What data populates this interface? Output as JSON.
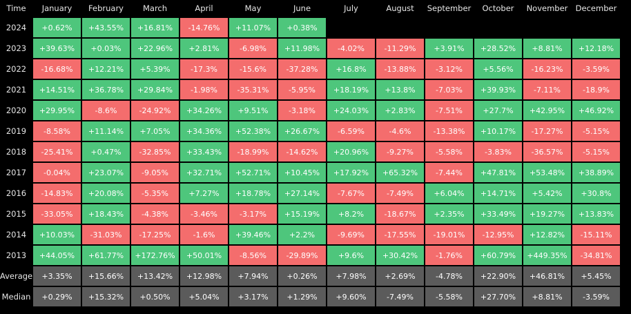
{
  "table": {
    "header": [
      "Time",
      "January",
      "February",
      "March",
      "April",
      "May",
      "June",
      "July",
      "August",
      "September",
      "October",
      "November",
      "December"
    ],
    "rows": [
      {
        "label": "2024",
        "cells": [
          "+0.62%",
          "+43.55%",
          "+16.81%",
          "-14.76%",
          "+11.07%",
          "+0.38%"
        ]
      },
      {
        "label": "2023",
        "cells": [
          "+39.63%",
          "+0.03%",
          "+22.96%",
          "+2.81%",
          "-6.98%",
          "+11.98%",
          "-4.02%",
          "-11.29%",
          "+3.91%",
          "+28.52%",
          "+8.81%",
          "+12.18%"
        ]
      },
      {
        "label": "2022",
        "cells": [
          "-16.68%",
          "+12.21%",
          "+5.39%",
          "-17.3%",
          "-15.6%",
          "-37.28%",
          "+16.8%",
          "-13.88%",
          "-3.12%",
          "+5.56%",
          "-16.23%",
          "-3.59%"
        ]
      },
      {
        "label": "2021",
        "cells": [
          "+14.51%",
          "+36.78%",
          "+29.84%",
          "-1.98%",
          "-35.31%",
          "-5.95%",
          "+18.19%",
          "+13.8%",
          "-7.03%",
          "+39.93%",
          "-7.11%",
          "-18.9%"
        ]
      },
      {
        "label": "2020",
        "cells": [
          "+29.95%",
          "-8.6%",
          "-24.92%",
          "+34.26%",
          "+9.51%",
          "-3.18%",
          "+24.03%",
          "+2.83%",
          "-7.51%",
          "+27.7%",
          "+42.95%",
          "+46.92%"
        ]
      },
      {
        "label": "2019",
        "cells": [
          "-8.58%",
          "+11.14%",
          "+7.05%",
          "+34.36%",
          "+52.38%",
          "+26.67%",
          "-6.59%",
          "-4.6%",
          "-13.38%",
          "+10.17%",
          "-17.27%",
          "-5.15%"
        ]
      },
      {
        "label": "2018",
        "cells": [
          "-25.41%",
          "+0.47%",
          "-32.85%",
          "+33.43%",
          "-18.99%",
          "-14.62%",
          "+20.96%",
          "-9.27%",
          "-5.58%",
          "-3.83%",
          "-36.57%",
          "-5.15%"
        ]
      },
      {
        "label": "2017",
        "cells": [
          "-0.04%",
          "+23.07%",
          "-9.05%",
          "+32.71%",
          "+52.71%",
          "+10.45%",
          "+17.92%",
          "+65.32%",
          "-7.44%",
          "+47.81%",
          "+53.48%",
          "+38.89%"
        ]
      },
      {
        "label": "2016",
        "cells": [
          "-14.83%",
          "+20.08%",
          "-5.35%",
          "+7.27%",
          "+18.78%",
          "+27.14%",
          "-7.67%",
          "-7.49%",
          "+6.04%",
          "+14.71%",
          "+5.42%",
          "+30.8%"
        ]
      },
      {
        "label": "2015",
        "cells": [
          "-33.05%",
          "+18.43%",
          "-4.38%",
          "-3.46%",
          "-3.17%",
          "+15.19%",
          "+8.2%",
          "-18.67%",
          "+2.35%",
          "+33.49%",
          "+19.27%",
          "+13.83%"
        ]
      },
      {
        "label": "2014",
        "cells": [
          "+10.03%",
          "-31.03%",
          "-17.25%",
          "-1.6%",
          "+39.46%",
          "+2.2%",
          "-9.69%",
          "-17.55%",
          "-19.01%",
          "-12.95%",
          "+12.82%",
          "-15.11%"
        ]
      },
      {
        "label": "2013",
        "cells": [
          "+44.05%",
          "+61.77%",
          "+172.76%",
          "+50.01%",
          "-8.56%",
          "-29.89%",
          "+9.6%",
          "+30.42%",
          "-1.76%",
          "+60.79%",
          "+449.35%",
          "-34.81%"
        ]
      }
    ],
    "summary": [
      {
        "label": "Average",
        "cells": [
          "+3.35%",
          "+15.66%",
          "+13.42%",
          "+12.98%",
          "+7.94%",
          "+0.26%",
          "+7.98%",
          "+2.69%",
          "-4.78%",
          "+22.90%",
          "+46.81%",
          "+5.45%"
        ]
      },
      {
        "label": "Median",
        "cells": [
          "+0.29%",
          "+15.32%",
          "+0.50%",
          "+5.04%",
          "+3.17%",
          "+1.29%",
          "+9.60%",
          "-7.49%",
          "-5.58%",
          "+27.70%",
          "+8.81%",
          "-3.59%"
        ]
      }
    ]
  }
}
